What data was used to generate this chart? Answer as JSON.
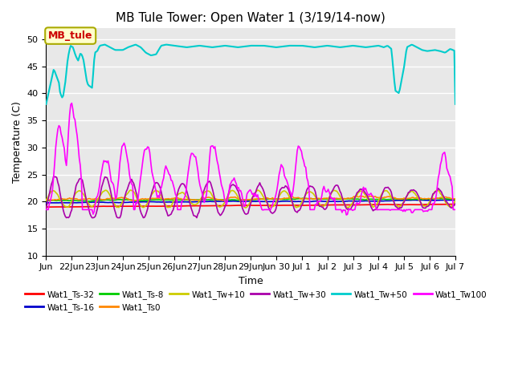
{
  "title": "MB Tule Tower: Open Water 1 (3/19/14-now)",
  "xlabel": "Time",
  "ylabel": "Temperature (C)",
  "ylim": [
    10,
    52
  ],
  "yticks": [
    10,
    15,
    20,
    25,
    30,
    35,
    40,
    45,
    50
  ],
  "bg_color": "#e8e8e8",
  "annotation_label": "MB_tule",
  "annotation_color": "#cc0000",
  "annotation_bg": "#ffffcc",
  "annotation_border": "#aaaa00",
  "series_colors": {
    "Wat1_Ts-32": "#ff0000",
    "Wat1_Ts-16": "#0000cc",
    "Wat1_Ts-8": "#00cc00",
    "Wat1_Ts0": "#ff8800",
    "Wat1_Tw+10": "#cccc00",
    "Wat1_Tw+30": "#aa00aa",
    "Wat1_Tw+50": "#00cccc",
    "Wat1_Tw100": "#ff00ff"
  },
  "xtick_labels": [
    "Jun",
    "22Jun",
    "23Jun",
    "24Jun",
    "25Jun",
    "26Jun",
    "27Jun",
    "28Jun",
    "29Jun",
    "Jun 30",
    "Jul 1",
    "Jul 2",
    "Jul 3",
    "Jul 4",
    "Jul 5",
    "Jul 6",
    "Jul 7"
  ]
}
